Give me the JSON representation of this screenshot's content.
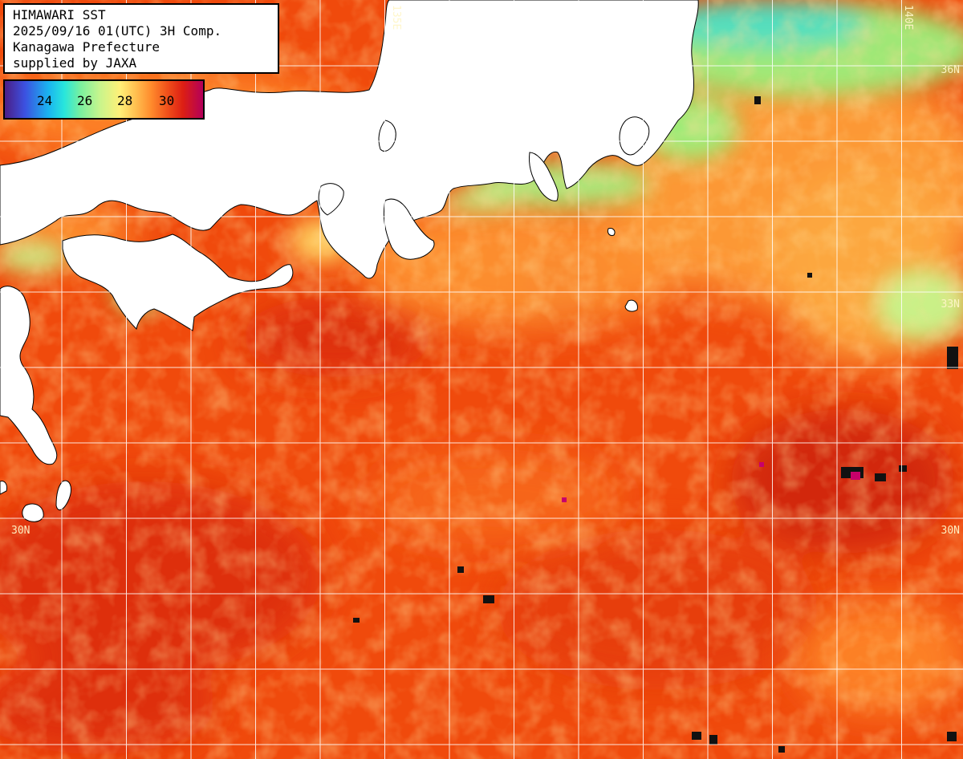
{
  "info": {
    "line1": "HIMAWARI SST",
    "line2": "2025/09/16 01(UTC) 3H Comp.",
    "line3": "Kanagawa Prefecture",
    "line4": "supplied by JAXA"
  },
  "color_scale": {
    "labels": [
      "24",
      "26",
      "28",
      "30"
    ],
    "colors": [
      "#4b1e86",
      "#1ab4f0",
      "#78f0a0",
      "#fff078",
      "#ff8a2c",
      "#dc1e14",
      "#b4005a"
    ]
  },
  "grid": {
    "lat_labels": [
      "36N",
      "33N",
      "30N"
    ],
    "lon_labels": [
      "135E",
      "140E"
    ]
  },
  "colors": {
    "land": "#ffffff",
    "ocean_warm": "#f04a0c",
    "ocean_hot": "#d8280a",
    "ocean_mild": "#ffb040",
    "ocean_cool": "#9cf07c",
    "ocean_cold": "#4ce6c8",
    "gridline": "#ffffff"
  }
}
